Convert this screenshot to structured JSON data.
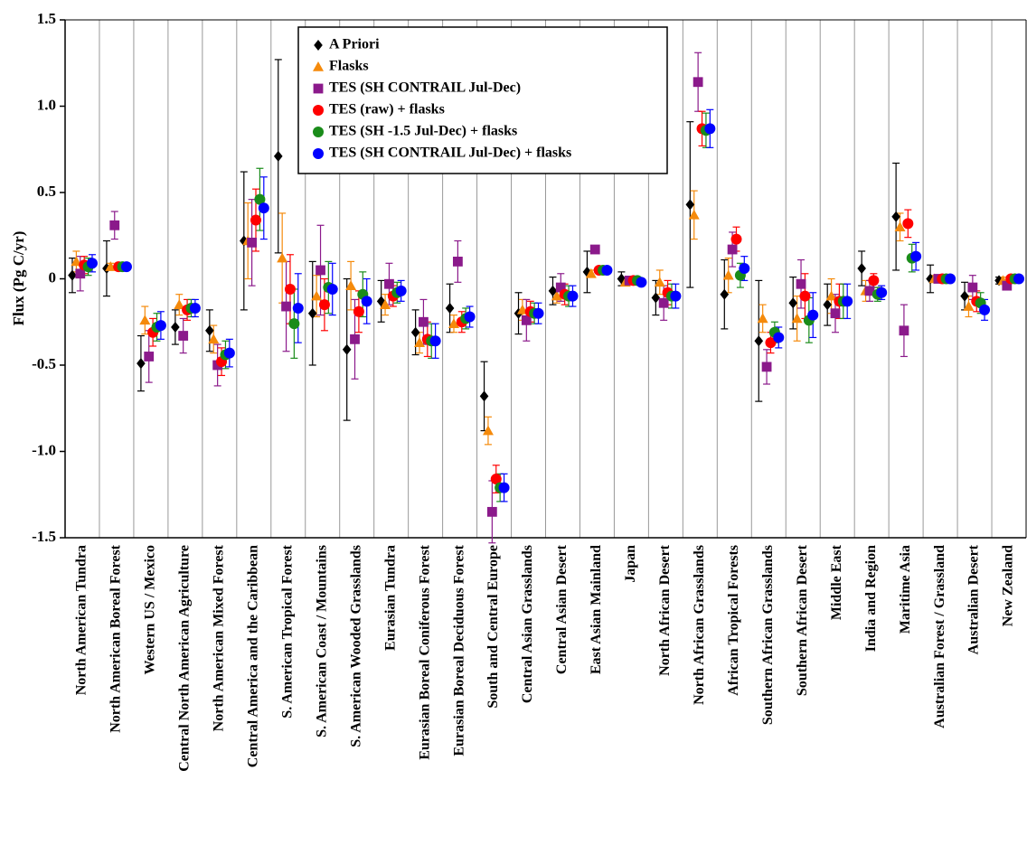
{
  "chart_data": {
    "type": "errorbar",
    "y_label": "Flux (Pg C/yr)",
    "categories": [
      "North American Tundra",
      "North American Boreal Forest",
      "Western US / Mexico",
      "Central North American Agriculture",
      "North American Mixed Forest",
      "Central America and the Caribbean",
      "S. American Tropical Forest",
      "S. American Coast / Mountains",
      "S. American Wooded Grasslands",
      "Eurasian Tundra",
      "Eurasian Boreal Coniferous Forest",
      "Eurasian Boreal Deciduous Forest",
      "South and Central Europe",
      "Central Asian Grasslands",
      "Central Asian Desert",
      "East Asian Mainland",
      "Japan",
      "North African Desert",
      "North African Grasslands",
      "African Tropical Forests",
      "Southern African Grasslands",
      "Southern African Desert",
      "Middle East",
      "India and Region",
      "Maritime Asia",
      "Australian Forest / Grassland",
      "Australian Desert",
      "New Zealand"
    ],
    "series": [
      {
        "name": "A Priori",
        "color": "#000000",
        "marker": "diamond",
        "values": [
          0.02,
          0.06,
          -0.49,
          -0.28,
          -0.3,
          0.22,
          0.71,
          -0.2,
          -0.41,
          -0.13,
          -0.31,
          -0.17,
          -0.68,
          -0.2,
          -0.07,
          0.04,
          0,
          -0.11,
          0.43,
          -0.09,
          -0.36,
          -0.14,
          -0.15,
          0.06,
          0.36,
          0,
          -0.1,
          -0.01
        ],
        "errors": [
          0.1,
          0.16,
          0.16,
          0.1,
          0.12,
          0.4,
          0.56,
          0.3,
          0.41,
          0.12,
          0.13,
          0.14,
          0.2,
          0.12,
          0.08,
          0.12,
          0.04,
          0.1,
          0.48,
          0.2,
          0.35,
          0.15,
          0.12,
          0.1,
          0.31,
          0.08,
          0.08,
          0.02
        ]
      },
      {
        "name": "Flasks",
        "color": "#f58a0b",
        "marker": "triangle",
        "values": [
          0.1,
          0.07,
          -0.24,
          -0.15,
          -0.35,
          0.22,
          0.12,
          -0.1,
          -0.04,
          -0.15,
          -0.37,
          -0.26,
          -0.88,
          -0.18,
          -0.1,
          0.03,
          -0.02,
          -0.02,
          0.37,
          0.02,
          -0.23,
          -0.23,
          -0.1,
          -0.07,
          0.3,
          0,
          -0.16,
          -0.01
        ],
        "errors": [
          0.06,
          0.02,
          0.08,
          0.06,
          0.08,
          0.22,
          0.26,
          0.12,
          0.14,
          0.06,
          0.06,
          0.05,
          0.08,
          0.06,
          0.04,
          0.02,
          0.02,
          0.07,
          0.14,
          0.1,
          0.08,
          0.13,
          0.1,
          0.06,
          0.08,
          0.02,
          0.06,
          0.02
        ]
      },
      {
        "name": "TES (SH CONTRAIL Jul-Dec)",
        "color": "#8b1a8b",
        "marker": "square",
        "values": [
          0.03,
          0.31,
          -0.45,
          -0.33,
          -0.5,
          0.21,
          -0.16,
          0.05,
          -0.35,
          -0.03,
          -0.25,
          0.1,
          -1.35,
          -0.24,
          -0.05,
          0.17,
          -0.01,
          -0.14,
          1.14,
          0.17,
          -0.51,
          -0.03,
          -0.2,
          -0.07,
          -0.3,
          0,
          -0.05,
          -0.04
        ],
        "errors": [
          0.1,
          0.08,
          0.15,
          0.1,
          0.12,
          0.25,
          0.26,
          0.26,
          0.23,
          0.12,
          0.13,
          0.12,
          0.18,
          0.12,
          0.08,
          0.02,
          0.02,
          0.1,
          0.17,
          0.1,
          0.1,
          0.14,
          0.11,
          0.06,
          0.15,
          0.02,
          0.07,
          0.02
        ]
      },
      {
        "name": "TES (raw) + flasks",
        "color": "#ff0000",
        "marker": "circle",
        "values": [
          0.08,
          0.07,
          -0.31,
          -0.18,
          -0.48,
          0.34,
          -0.06,
          -0.15,
          -0.19,
          -0.1,
          -0.35,
          -0.25,
          -1.16,
          -0.19,
          -0.09,
          0.05,
          -0.01,
          -0.08,
          0.87,
          0.23,
          -0.37,
          -0.1,
          -0.13,
          -0.01,
          0.32,
          0,
          -0.13,
          0
        ],
        "errors": [
          0.05,
          0.02,
          0.08,
          0.06,
          0.08,
          0.18,
          0.2,
          0.15,
          0.12,
          0.06,
          0.1,
          0.06,
          0.08,
          0.06,
          0.06,
          0.02,
          0.02,
          0.07,
          0.1,
          0.07,
          0.06,
          0.13,
          0.1,
          0.04,
          0.08,
          0.02,
          0.06,
          0.02
        ]
      },
      {
        "name": "TES (SH -1.5 Jul-Dec) + flasks",
        "color": "#1a8c1a",
        "marker": "circle",
        "values": [
          0.07,
          0.07,
          -0.28,
          -0.17,
          -0.44,
          0.46,
          -0.26,
          -0.05,
          -0.09,
          -0.08,
          -0.36,
          -0.23,
          -1.21,
          -0.2,
          -0.1,
          0.05,
          -0.01,
          -0.1,
          0.86,
          0.02,
          -0.31,
          -0.24,
          -0.13,
          -0.09,
          0.12,
          0,
          -0.14,
          0
        ],
        "errors": [
          0.05,
          0.02,
          0.08,
          0.05,
          0.08,
          0.18,
          0.2,
          0.15,
          0.13,
          0.06,
          0.1,
          0.06,
          0.08,
          0.06,
          0.06,
          0.02,
          0.02,
          0.07,
          0.1,
          0.07,
          0.06,
          0.13,
          0.1,
          0.04,
          0.08,
          0.02,
          0.06,
          0.02
        ]
      },
      {
        "name": "TES (SH CONTRAIL Jul-Dec) + flasks",
        "color": "#0000ff",
        "marker": "circle",
        "values": [
          0.09,
          0.07,
          -0.27,
          -0.17,
          -0.43,
          0.41,
          -0.17,
          -0.06,
          -0.13,
          -0.07,
          -0.36,
          -0.22,
          -1.21,
          -0.2,
          -0.1,
          0.05,
          -0.02,
          -0.1,
          0.87,
          0.06,
          -0.34,
          -0.21,
          -0.13,
          -0.08,
          0.13,
          0,
          -0.18,
          0
        ],
        "errors": [
          0.05,
          0.02,
          0.08,
          0.05,
          0.08,
          0.18,
          0.2,
          0.15,
          0.13,
          0.06,
          0.1,
          0.06,
          0.08,
          0.06,
          0.06,
          0.02,
          0.02,
          0.07,
          0.11,
          0.07,
          0.06,
          0.13,
          0.1,
          0.04,
          0.08,
          0.02,
          0.06,
          0.02
        ]
      }
    ],
    "ylim": [
      -1.5,
      1.5
    ],
    "yticks": [
      -1.5,
      {
        "value": -1,
        "label": "-1.0"
      },
      -0.5,
      0,
      0.5,
      {
        "value": 1,
        "label": "1.0"
      },
      1.5
    ]
  }
}
